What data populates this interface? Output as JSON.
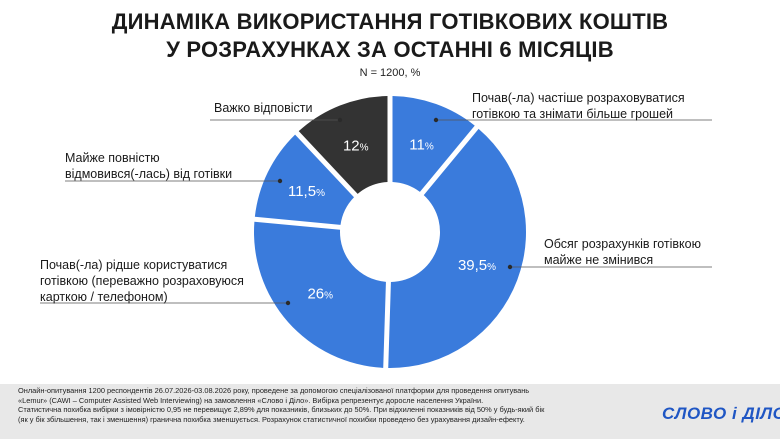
{
  "title": {
    "line1": "ДИНАМІКА ВИКОРИСТАННЯ ГОТІВКОВИХ КОШТІВ",
    "line2": "У РОЗРАХУНКАХ ЗА ОСТАННІ 6 МІСЯЦІВ"
  },
  "subtitle": "N = 1200, %",
  "colors": {
    "blue": "#3a7bdc",
    "dark": "#333333",
    "line": "#555555"
  },
  "chart_data": {
    "type": "pie",
    "title": "ДИНАМІКА ВИКОРИСТАННЯ ГОТІВКОВИХ КОШТІВ У РОЗРАХУНКАХ ЗА ОСТАННІ 6 МІСЯЦІВ",
    "subtitle": "N = 1200, %",
    "slices": [
      {
        "value": 11,
        "label_value": "11",
        "text_lines": [
          "Почав(-ла) частіше розраховуватися",
          "готівкою та знімати більше грошей"
        ],
        "color": "#3a7bdc"
      },
      {
        "value": 39.5,
        "label_value": "39,5",
        "text_lines": [
          "Обсяг розрахунків готівкою",
          "майже не змінився"
        ],
        "color": "#3a7bdc"
      },
      {
        "value": 26,
        "label_value": "26",
        "text_lines": [
          "Почав(-ла) рідше користуватися",
          "готівкою (переважно розраховуюся",
          "карткою / телефоном)"
        ],
        "color": "#3a7bdc"
      },
      {
        "value": 11.5,
        "label_value": "11,5",
        "text_lines": [
          "Майже повністю",
          "відмовився(-лась) від готівки"
        ],
        "color": "#3a7bdc"
      },
      {
        "value": 12,
        "label_value": "12",
        "text_lines": [
          "Важко відповісти"
        ],
        "color": "#333333"
      }
    ]
  },
  "footer": {
    "lines": [
      "Онлайн-опитування 1200 респондентів 26.07.2026-03.08.2026 року, проведене за допомогою спеціалізованої платформи для проведення опитувань",
      "«Lemur» (CAWI – Computer Assisted Web Interviewing) на замовлення «Слово і Діло». Вибірка репрезентує доросле населення України.",
      "Статистична похибка вибірки з імовірністю 0,95 не перевищує 2,89% для показників, близьких до 50%. При відхиленні показників від 50% у будь-який бік",
      "(як у бік збільшення, так і зменшення) гранична похибка зменшується. Розрахунок статистичної похибки проведено без урахування дизайн-ефекту."
    ]
  },
  "logo": "СЛОВО і ДІЛО"
}
